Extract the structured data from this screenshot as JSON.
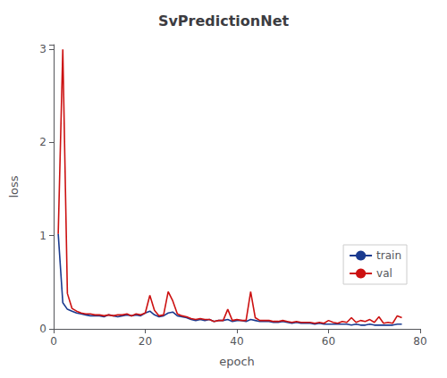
{
  "chart_data": {
    "type": "line",
    "title": "SvPredictionNet",
    "xlabel": "epoch",
    "ylabel": "loss",
    "x": [
      1,
      2,
      3,
      4,
      5,
      6,
      7,
      8,
      9,
      10,
      11,
      12,
      13,
      14,
      15,
      16,
      17,
      18,
      19,
      20,
      21,
      22,
      23,
      24,
      25,
      26,
      27,
      28,
      29,
      30,
      31,
      32,
      33,
      34,
      35,
      36,
      37,
      38,
      39,
      40,
      41,
      42,
      43,
      44,
      45,
      46,
      47,
      48,
      49,
      50,
      51,
      52,
      53,
      54,
      55,
      56,
      57,
      58,
      59,
      60,
      61,
      62,
      63,
      64,
      65,
      66,
      67,
      68,
      69,
      70,
      71,
      72,
      73,
      74,
      75,
      76
    ],
    "series": [
      {
        "name": "train",
        "color": "#1a3a8f",
        "values": [
          1.02,
          0.28,
          0.21,
          0.19,
          0.17,
          0.16,
          0.15,
          0.14,
          0.14,
          0.14,
          0.13,
          0.15,
          0.14,
          0.13,
          0.14,
          0.15,
          0.14,
          0.15,
          0.14,
          0.17,
          0.19,
          0.15,
          0.13,
          0.14,
          0.17,
          0.18,
          0.14,
          0.13,
          0.12,
          0.1,
          0.09,
          0.1,
          0.09,
          0.1,
          0.08,
          0.09,
          0.09,
          0.1,
          0.08,
          0.09,
          0.09,
          0.08,
          0.1,
          0.09,
          0.08,
          0.08,
          0.08,
          0.07,
          0.07,
          0.08,
          0.07,
          0.06,
          0.07,
          0.06,
          0.06,
          0.06,
          0.05,
          0.06,
          0.05,
          0.05,
          0.05,
          0.05,
          0.05,
          0.05,
          0.04,
          0.05,
          0.04,
          0.04,
          0.05,
          0.04,
          0.04,
          0.04,
          0.04,
          0.04,
          0.05,
          0.05
        ]
      },
      {
        "name": "val",
        "color": "#cc1111",
        "values": [
          1.02,
          3.0,
          0.38,
          0.22,
          0.19,
          0.17,
          0.16,
          0.16,
          0.15,
          0.15,
          0.14,
          0.15,
          0.14,
          0.15,
          0.15,
          0.16,
          0.14,
          0.16,
          0.15,
          0.17,
          0.36,
          0.2,
          0.14,
          0.15,
          0.4,
          0.3,
          0.16,
          0.14,
          0.13,
          0.11,
          0.1,
          0.11,
          0.1,
          0.1,
          0.08,
          0.09,
          0.09,
          0.21,
          0.09,
          0.1,
          0.09,
          0.09,
          0.4,
          0.12,
          0.09,
          0.09,
          0.09,
          0.08,
          0.08,
          0.09,
          0.08,
          0.07,
          0.08,
          0.07,
          0.07,
          0.07,
          0.06,
          0.07,
          0.06,
          0.09,
          0.07,
          0.06,
          0.08,
          0.07,
          0.12,
          0.07,
          0.09,
          0.08,
          0.1,
          0.07,
          0.13,
          0.06,
          0.07,
          0.06,
          0.14,
          0.12
        ]
      }
    ],
    "xlim": [
      0,
      80
    ],
    "xticks": [
      0,
      20,
      40,
      60,
      80
    ],
    "ylim": [
      0,
      3.05
    ],
    "yticks": [
      0,
      1,
      2,
      3
    ],
    "grid": false,
    "legend": "lower right"
  }
}
